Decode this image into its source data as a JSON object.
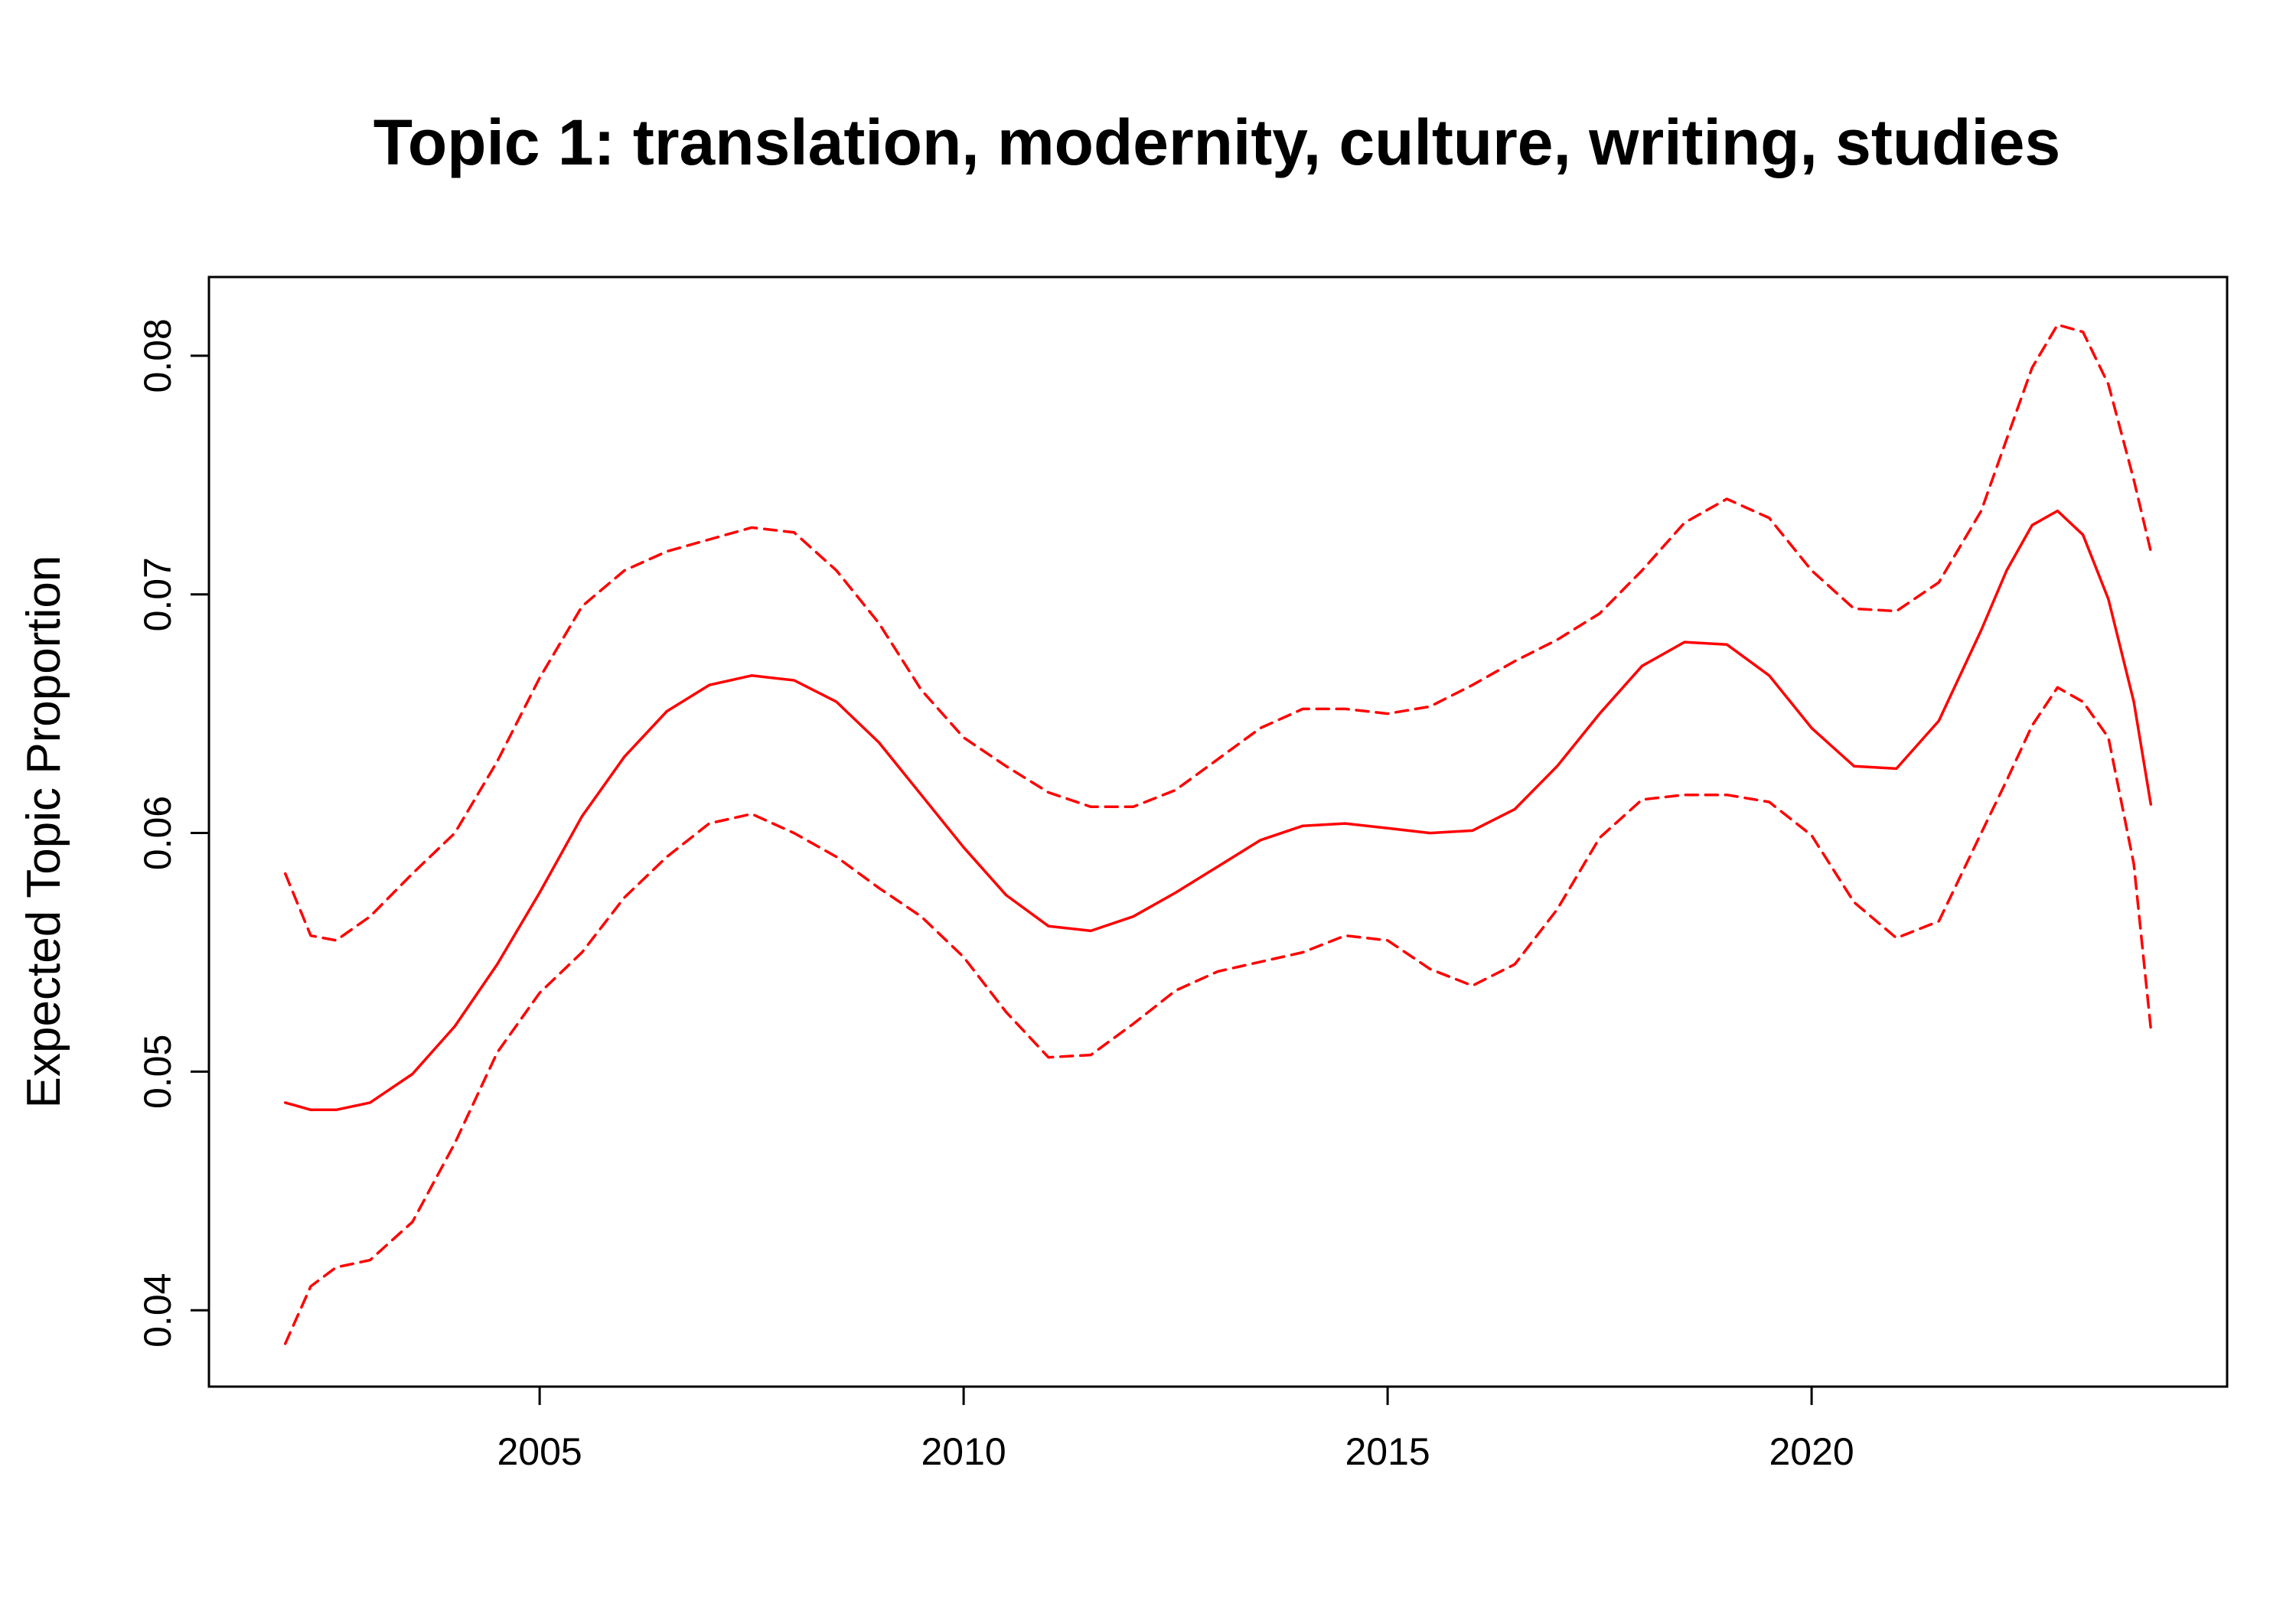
{
  "chart_data": {
    "type": "line",
    "title": "Topic 1: translation, modernity, culture, writing, studies",
    "xlabel": "",
    "ylabel": "Expected Topic Proportion",
    "xlim": [
      2001.1,
      2024.9
    ],
    "ylim": [
      0.0368,
      0.0833
    ],
    "x_ticks": [
      2005,
      2010,
      2015,
      2020
    ],
    "x_tick_labels": [
      "2005",
      "2010",
      "2015",
      "2020"
    ],
    "y_ticks": [
      0.04,
      0.05,
      0.06,
      0.07,
      0.08
    ],
    "y_tick_labels": [
      "0.04",
      "0.05",
      "0.06",
      "0.07",
      "0.08"
    ],
    "grid": false,
    "legend": "none",
    "color": "#ff0000",
    "x": [
      2002.0,
      2002.3,
      2002.6,
      2003.0,
      2003.5,
      2004.0,
      2004.5,
      2005.0,
      2005.5,
      2006.0,
      2006.5,
      2007.0,
      2007.5,
      2008.0,
      2008.5,
      2009.0,
      2009.5,
      2010.0,
      2010.5,
      2011.0,
      2011.5,
      2012.0,
      2012.5,
      2013.0,
      2013.5,
      2014.0,
      2014.5,
      2015.0,
      2015.5,
      2016.0,
      2016.5,
      2017.0,
      2017.5,
      2018.0,
      2018.5,
      2019.0,
      2019.5,
      2020.0,
      2020.5,
      2021.0,
      2021.5,
      2022.0,
      2022.3,
      2022.6,
      2022.9,
      2023.2,
      2023.5,
      2023.8,
      2024.0
    ],
    "series": [
      {
        "style": "solid",
        "values": [
          0.0487,
          0.0484,
          0.0484,
          0.0487,
          0.0499,
          0.0519,
          0.0545,
          0.0575,
          0.0607,
          0.0632,
          0.0651,
          0.0662,
          0.0666,
          0.0664,
          0.0655,
          0.0638,
          0.0616,
          0.0594,
          0.0574,
          0.0561,
          0.0559,
          0.0565,
          0.0575,
          0.0586,
          0.0597,
          0.0603,
          0.0604,
          0.0602,
          0.06,
          0.0601,
          0.061,
          0.0628,
          0.065,
          0.067,
          0.068,
          0.0679,
          0.0666,
          0.0644,
          0.0628,
          0.0627,
          0.0647,
          0.0685,
          0.071,
          0.0729,
          0.0735,
          0.0725,
          0.0698,
          0.0655,
          0.0612
        ]
      },
      {
        "style": "dashed",
        "values": [
          0.0583,
          0.0557,
          0.0555,
          0.0565,
          0.0583,
          0.06,
          0.063,
          0.0665,
          0.0695,
          0.071,
          0.0718,
          0.0723,
          0.0728,
          0.0726,
          0.071,
          0.0688,
          0.066,
          0.064,
          0.0628,
          0.0617,
          0.0611,
          0.0611,
          0.0618,
          0.0631,
          0.0644,
          0.0652,
          0.0652,
          0.065,
          0.0653,
          0.0662,
          0.0672,
          0.0681,
          0.0692,
          0.071,
          0.073,
          0.074,
          0.0732,
          0.071,
          0.0694,
          0.0693,
          0.0705,
          0.0735,
          0.0765,
          0.0795,
          0.0813,
          0.081,
          0.0788,
          0.0748,
          0.0718
        ]
      },
      {
        "style": "dashed",
        "values": [
          0.0386,
          0.041,
          0.0418,
          0.0421,
          0.0437,
          0.047,
          0.0508,
          0.0533,
          0.055,
          0.0573,
          0.059,
          0.0604,
          0.0608,
          0.06,
          0.059,
          0.0577,
          0.0565,
          0.0548,
          0.0525,
          0.0506,
          0.0507,
          0.052,
          0.0534,
          0.0542,
          0.0546,
          0.055,
          0.0557,
          0.0555,
          0.0543,
          0.0536,
          0.0545,
          0.0568,
          0.0598,
          0.0614,
          0.0616,
          0.0616,
          0.0613,
          0.0599,
          0.0571,
          0.0556,
          0.0563,
          0.06,
          0.0622,
          0.0645,
          0.0661,
          0.0655,
          0.064,
          0.0587,
          0.0518
        ]
      }
    ]
  }
}
